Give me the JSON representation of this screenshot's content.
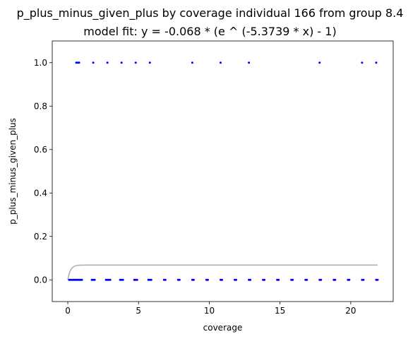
{
  "chart_data": {
    "type": "scatter",
    "title": "p_plus_minus_given_plus by coverage individual 166 from group 8.4",
    "subtitle": "model fit: y = -0.068 * (e ^ (-5.3739 * x) - 1)",
    "xlabel": "coverage",
    "ylabel": "p_plus_minus_given_plus",
    "xlim": [
      -1.1,
      23.0
    ],
    "ylim": [
      -0.1,
      1.1
    ],
    "x_ticks": [
      0,
      5,
      10,
      15,
      20
    ],
    "x_tick_labels": [
      "0",
      "5",
      "10",
      "15",
      "20"
    ],
    "y_ticks": [
      0.0,
      0.2,
      0.4,
      0.6,
      0.8,
      1.0
    ],
    "y_tick_labels": [
      "0.0",
      "0.2",
      "0.4",
      "0.6",
      "0.8",
      "1.0"
    ],
    "grid": false,
    "series": [
      {
        "color": "#0000ff",
        "points": [
          [
            0.6,
            1
          ],
          [
            0.7,
            1
          ],
          [
            0.8,
            1
          ],
          [
            1.8,
            1
          ],
          [
            2.8,
            1
          ],
          [
            3.8,
            1
          ],
          [
            4.8,
            1
          ],
          [
            5.8,
            1
          ],
          [
            8.8,
            1
          ],
          [
            10.8,
            1
          ],
          [
            12.8,
            1
          ],
          [
            17.8,
            1
          ],
          [
            20.8,
            1
          ],
          [
            21.8,
            1
          ],
          [
            0.1,
            0
          ],
          [
            0.2,
            0
          ],
          [
            0.3,
            0
          ],
          [
            0.4,
            0
          ],
          [
            0.5,
            0
          ],
          [
            0.6,
            0
          ],
          [
            0.7,
            0
          ],
          [
            0.8,
            0
          ],
          [
            0.9,
            0
          ],
          [
            1.0,
            0
          ],
          [
            1.7,
            0
          ],
          [
            1.8,
            0
          ],
          [
            1.9,
            0
          ],
          [
            2.7,
            0
          ],
          [
            2.8,
            0
          ],
          [
            2.9,
            0
          ],
          [
            3.0,
            0
          ],
          [
            3.7,
            0
          ],
          [
            3.8,
            0
          ],
          [
            3.9,
            0
          ],
          [
            4.7,
            0
          ],
          [
            4.8,
            0
          ],
          [
            4.9,
            0
          ],
          [
            5.7,
            0
          ],
          [
            5.8,
            0
          ],
          [
            5.9,
            0
          ],
          [
            6.8,
            0
          ],
          [
            6.9,
            0
          ],
          [
            7.8,
            0
          ],
          [
            7.9,
            0
          ],
          [
            8.8,
            0
          ],
          [
            8.9,
            0
          ],
          [
            9.8,
            0
          ],
          [
            9.9,
            0
          ],
          [
            10.8,
            0
          ],
          [
            10.9,
            0
          ],
          [
            11.8,
            0
          ],
          [
            11.9,
            0
          ],
          [
            12.8,
            0
          ],
          [
            12.9,
            0
          ],
          [
            13.8,
            0
          ],
          [
            13.9,
            0
          ],
          [
            14.8,
            0
          ],
          [
            14.9,
            0
          ],
          [
            15.8,
            0
          ],
          [
            15.9,
            0
          ],
          [
            16.8,
            0
          ],
          [
            16.9,
            0
          ],
          [
            17.8,
            0
          ],
          [
            17.9,
            0
          ],
          [
            18.8,
            0
          ],
          [
            18.9,
            0
          ],
          [
            19.8,
            0
          ],
          [
            19.9,
            0
          ],
          [
            20.8,
            0
          ],
          [
            20.9,
            0
          ],
          [
            21.8,
            0
          ],
          [
            21.9,
            0
          ]
        ]
      }
    ],
    "fit": {
      "a": -0.068,
      "b": -5.3739,
      "x_range": [
        0,
        21.9
      ],
      "color": "#b0b0b0"
    }
  }
}
